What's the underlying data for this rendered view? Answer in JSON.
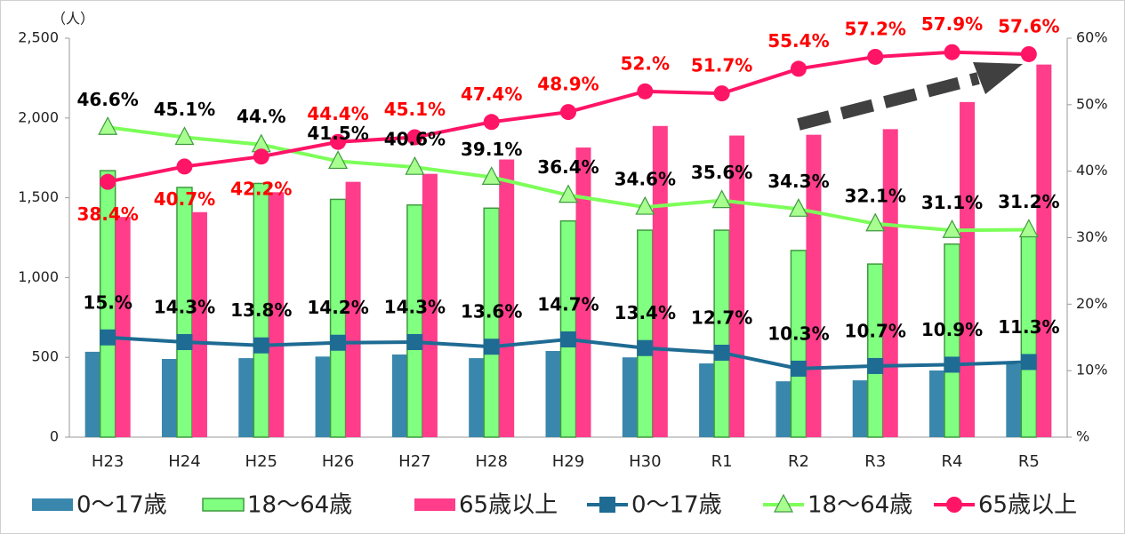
{
  "chart_data": {
    "type": "bar",
    "y_label": "（人）",
    "categories": [
      "H23",
      "H24",
      "H25",
      "H26",
      "H27",
      "H28",
      "H29",
      "H30",
      "R1",
      "R2",
      "R3",
      "R4",
      "R5"
    ],
    "ylim": [
      0,
      2500
    ],
    "yticks": [
      0,
      500,
      {
        "value": 1000,
        "label": "1,000"
      },
      {
        "value": 1500,
        "label": "1,500"
      },
      {
        "value": 2000,
        "label": "2,000"
      },
      {
        "value": 2500,
        "label": "2,500"
      }
    ],
    "y2lim": [
      0,
      60
    ],
    "y2ticks": [
      {
        "value": 0,
        "label": "%"
      },
      {
        "value": 10,
        "label": "10%"
      },
      {
        "value": 20,
        "label": "20%"
      },
      {
        "value": 30,
        "label": "30%"
      },
      {
        "value": 40,
        "label": "40%"
      },
      {
        "value": 50,
        "label": "50%"
      },
      {
        "value": 60,
        "label": "60%"
      }
    ],
    "legend": "bottom",
    "series": [
      {
        "name": "0～17歳",
        "type": "bar",
        "color": "#3a87ad",
        "values": [
          535,
          490,
          495,
          505,
          518,
          495,
          540,
          500,
          462,
          350,
          356,
          418,
          457
        ]
      },
      {
        "name": "18～64歳",
        "type": "bar",
        "color": "#80ff80",
        "edge": "#3f9a3f",
        "values": [
          1670,
          1565,
          1590,
          1490,
          1455,
          1435,
          1355,
          1297,
          1297,
          1170,
          1085,
          1210,
          1260
        ]
      },
      {
        "name": "65歳以上",
        "type": "bar",
        "color": "#ff3d8b",
        "values": [
          1380,
          1410,
          1535,
          1600,
          1650,
          1740,
          1815,
          1950,
          1890,
          1895,
          1930,
          2100,
          2335
        ]
      },
      {
        "name": "0～17歳",
        "type": "line",
        "axis": "y2",
        "color": "#1e6b93",
        "marker": "square",
        "label_color": "#000000",
        "values": [
          15,
          14.3,
          13.8,
          14.2,
          14.3,
          13.6,
          14.7,
          13.4,
          12.7,
          10.3,
          10.7,
          10.9,
          11.3
        ],
        "value_labels": [
          "15.%",
          "14.3%",
          "13.8%",
          "14.2%",
          "14.3%",
          "13.6%",
          "14.7%",
          "13.4%",
          "12.7%",
          "10.3%",
          "10.7%",
          "10.9%",
          "11.3%"
        ]
      },
      {
        "name": "18～64歳",
        "type": "line",
        "axis": "y2",
        "color": "#7dff5a",
        "marker": "triangle",
        "label_color": "#000000",
        "values": [
          46.6,
          45.1,
          44,
          41.5,
          40.6,
          39.1,
          36.4,
          34.6,
          35.6,
          34.3,
          32.1,
          31.1,
          31.2
        ],
        "value_labels": [
          "46.6%",
          "45.1%",
          "44.%",
          "41.5%",
          "40.6%",
          "39.1%",
          "36.4%",
          "34.6%",
          "35.6%",
          "34.3%",
          "32.1%",
          "31.1%",
          "31.2%"
        ]
      },
      {
        "name": "65歳以上",
        "type": "line",
        "axis": "y2",
        "color": "#ff1466",
        "marker": "circle",
        "label_color": "#ff0000",
        "values": [
          38.4,
          40.7,
          42.2,
          44.4,
          45.1,
          47.4,
          48.9,
          52,
          51.7,
          55.4,
          57.2,
          57.9,
          57.6
        ],
        "value_labels": [
          "38.4%",
          "40.7%",
          "42.2%",
          "44.4%",
          "45.1%",
          "47.4%",
          "48.9%",
          "52.%",
          "51.7%",
          "55.4%",
          "57.2%",
          "57.9%",
          "57.6%"
        ]
      }
    ]
  }
}
